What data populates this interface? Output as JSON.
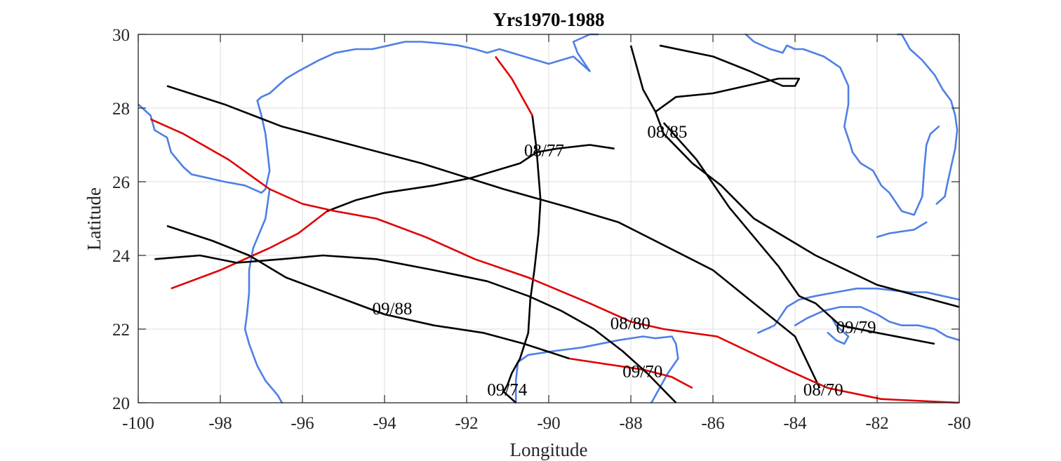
{
  "chart_data": {
    "type": "line",
    "title": "Yrs1970-1988",
    "xlabel": "Longitude",
    "ylabel": "Latitude",
    "xlim": [
      -100,
      -80
    ],
    "ylim": [
      20,
      30
    ],
    "xticks": [
      -100,
      -98,
      -96,
      -94,
      -92,
      -90,
      -88,
      -86,
      -84,
      -82,
      -80
    ],
    "xtick_labels": [
      "-100",
      "-98",
      "-96",
      "-94",
      "-92",
      "-90",
      "-88",
      "-86",
      "-84",
      "-82",
      "-80"
    ],
    "yticks": [
      20,
      22,
      24,
      26,
      28,
      30
    ],
    "ytick_labels": [
      "20",
      "22",
      "24",
      "26",
      "28",
      "30"
    ],
    "grid": true,
    "colors": {
      "track": "#000000",
      "highlight": "#e00000",
      "coast": "#4f7fe6",
      "grid": "#dcdcdc",
      "axis": "#262626"
    },
    "series": [
      {
        "name": "track-long-north",
        "color": "#000000",
        "x": [
          -99.3,
          -97.9,
          -96.5,
          -94.8,
          -93.1,
          -91.1,
          -89.5,
          -88.3,
          -86.0,
          -85.0,
          -84.0,
          -83.4
        ],
        "y": [
          28.6,
          28.1,
          27.5,
          27.0,
          26.5,
          25.8,
          25.3,
          24.9,
          23.6,
          22.7,
          21.8,
          20.4
        ]
      },
      {
        "name": "track-08/85",
        "color": "#000000",
        "x": [
          -88.0,
          -87.7,
          -87.4,
          -87.2,
          -86.5,
          -85.8,
          -85.0,
          -83.5,
          -82.0,
          -80.0
        ],
        "y": [
          29.7,
          28.5,
          27.9,
          27.3,
          26.5,
          25.9,
          25.0,
          24.0,
          23.2,
          22.6
        ]
      },
      {
        "name": "track-08/85-loop",
        "color": "#000000",
        "x": [
          -87.4,
          -86.9,
          -86.0,
          -85.2,
          -84.4,
          -83.9,
          -84.0,
          -84.3,
          -84.7,
          -85.1,
          -86.0,
          -87.3
        ],
        "y": [
          27.9,
          28.3,
          28.4,
          28.6,
          28.8,
          28.8,
          28.6,
          28.6,
          28.8,
          29.0,
          29.4,
          29.7
        ]
      },
      {
        "name": "track-09/79",
        "color": "#000000",
        "x": [
          -87.2,
          -86.4,
          -85.6,
          -84.4,
          -83.9,
          -83.5,
          -82.9,
          -82.0,
          -80.6
        ],
        "y": [
          27.6,
          26.6,
          25.3,
          23.7,
          22.9,
          22.7,
          22.1,
          21.9,
          21.6
        ]
      },
      {
        "name": "track-08/77",
        "color": "#000000",
        "x": [
          -95.4,
          -94.7,
          -94.0,
          -92.8,
          -91.9,
          -90.7,
          -90.3,
          -89.8,
          -89.0,
          -88.4
        ],
        "y": [
          25.2,
          25.5,
          25.7,
          25.9,
          26.1,
          26.5,
          26.8,
          26.9,
          27.0,
          26.9
        ]
      },
      {
        "name": "track-08/77-red",
        "color": "#e00000",
        "x": [
          -99.2,
          -98.0,
          -96.8,
          -96.1,
          -95.4
        ],
        "y": [
          23.1,
          23.6,
          24.2,
          24.6,
          25.2
        ]
      },
      {
        "name": "track-09/74",
        "color": "#000000",
        "x": [
          -90.4,
          -90.3,
          -90.2,
          -90.25,
          -90.35,
          -90.45,
          -90.5,
          -90.7,
          -90.9,
          -91.0,
          -91.1,
          -90.8
        ],
        "y": [
          27.8,
          26.9,
          25.5,
          24.6,
          23.6,
          22.8,
          21.9,
          21.2,
          20.8,
          20.5,
          20.3,
          20.0
        ]
      },
      {
        "name": "track-09/74-red",
        "color": "#e00000",
        "x": [
          -91.3,
          -90.9,
          -90.4
        ],
        "y": [
          29.4,
          28.8,
          27.8
        ]
      },
      {
        "name": "track-08/80-red",
        "color": "#e00000",
        "x": [
          -99.7,
          -98.9,
          -97.8,
          -96.8,
          -96.0,
          -95.2,
          -94.2,
          -93.0,
          -91.8,
          -90.5,
          -89.0,
          -88.0,
          -87.2,
          -85.9,
          -84.2,
          -83.2,
          -81.9,
          -80.0
        ],
        "y": [
          27.7,
          27.3,
          26.6,
          25.8,
          25.4,
          25.2,
          25.0,
          24.5,
          23.9,
          23.4,
          22.7,
          22.2,
          22.0,
          21.8,
          20.9,
          20.4,
          20.1,
          20.0
        ]
      },
      {
        "name": "track-09/88",
        "color": "#000000",
        "x": [
          -99.3,
          -98.2,
          -97.3,
          -96.4,
          -95.2,
          -94.0,
          -92.8,
          -91.6,
          -90.6,
          -89.5
        ],
        "y": [
          24.8,
          24.4,
          24.0,
          23.4,
          22.9,
          22.4,
          22.1,
          21.9,
          21.6,
          21.2
        ]
      },
      {
        "name": "track-09/88-red",
        "color": "#e00000",
        "x": [
          -89.5,
          -87.7,
          -87.0,
          -86.5
        ],
        "y": [
          21.2,
          20.9,
          20.7,
          20.4
        ]
      },
      {
        "name": "track-09/70",
        "color": "#000000",
        "x": [
          -99.6,
          -98.5,
          -97.6,
          -96.5,
          -95.5,
          -94.2,
          -92.8,
          -91.5,
          -90.5,
          -89.7,
          -88.9,
          -88.2,
          -87.6,
          -86.9
        ],
        "y": [
          23.9,
          24.0,
          23.8,
          23.9,
          24.0,
          23.9,
          23.6,
          23.3,
          22.9,
          22.5,
          22.0,
          21.4,
          20.8,
          20.0
        ]
      }
    ],
    "coastlines": [
      {
        "name": "texas-louisiana-coast",
        "x": [
          -100.0,
          -99.7,
          -99.6,
          -99.3,
          -99.2,
          -98.9,
          -98.7,
          -98.3,
          -97.9,
          -97.4,
          -97.0,
          -96.9,
          -96.8,
          -96.85,
          -96.9,
          -97.0,
          -97.05,
          -97.1,
          -97.0,
          -96.8,
          -96.6,
          -96.4,
          -96.1,
          -95.6,
          -95.2,
          -94.7,
          -94.3,
          -93.9,
          -93.5,
          -93.1,
          -92.6,
          -92.2,
          -91.8,
          -91.5,
          -91.2,
          -90.9,
          -90.6,
          -90.3,
          -90.0,
          -89.7,
          -89.4,
          -89.2,
          -89.0,
          -89.3,
          -89.4,
          -89.0,
          -88.8
        ],
        "y": [
          28.1,
          27.8,
          27.4,
          27.2,
          26.8,
          26.4,
          26.2,
          26.1,
          26.0,
          25.9,
          25.7,
          25.8,
          26.3,
          26.8,
          27.3,
          27.8,
          28.0,
          28.2,
          28.3,
          28.4,
          28.6,
          28.8,
          29.0,
          29.3,
          29.5,
          29.6,
          29.6,
          29.7,
          29.8,
          29.8,
          29.75,
          29.7,
          29.6,
          29.5,
          29.6,
          29.5,
          29.4,
          29.3,
          29.2,
          29.3,
          29.4,
          29.2,
          29.0,
          29.5,
          29.8,
          30.0,
          30.0
        ]
      },
      {
        "name": "mexico-coast",
        "x": [
          -96.8,
          -96.9,
          -97.05,
          -97.2,
          -97.3,
          -97.3,
          -97.35,
          -97.4,
          -97.3,
          -97.2,
          -97.1,
          -96.9,
          -96.6,
          -96.5
        ],
        "y": [
          25.8,
          25.0,
          24.6,
          24.2,
          23.6,
          23.0,
          22.4,
          22.0,
          21.6,
          21.3,
          21.0,
          20.6,
          20.2,
          20.0
        ]
      },
      {
        "name": "yucatan-coast",
        "x": [
          -90.8,
          -90.8,
          -90.75,
          -90.5,
          -89.9,
          -89.2,
          -88.3,
          -87.7,
          -87.4,
          -87.0,
          -86.9,
          -86.85,
          -87.1,
          -87.3,
          -87.5
        ],
        "y": [
          20.0,
          20.6,
          21.1,
          21.3,
          21.4,
          21.5,
          21.7,
          21.8,
          21.75,
          21.8,
          21.6,
          21.2,
          20.8,
          20.4,
          20.0
        ]
      },
      {
        "name": "florida-panhandle-coast",
        "x": [
          -85.2,
          -85.0,
          -84.6,
          -84.3,
          -84.2,
          -84.0,
          -83.8,
          -83.3,
          -82.9,
          -82.7,
          -82.7,
          -82.8,
          -82.65,
          -82.6,
          -82.4,
          -82.1,
          -81.9,
          -81.7,
          -81.4,
          -81.1,
          -80.9,
          -80.85,
          -80.8,
          -80.7,
          -80.5
        ],
        "y": [
          30.0,
          29.8,
          29.6,
          29.5,
          29.7,
          29.6,
          29.6,
          29.4,
          29.1,
          28.6,
          28.1,
          27.5,
          27.0,
          26.8,
          26.5,
          26.3,
          25.9,
          25.7,
          25.2,
          25.1,
          25.6,
          26.4,
          27.0,
          27.3,
          27.5
        ]
      },
      {
        "name": "florida-east-coast",
        "x": [
          -80.55,
          -80.35,
          -80.3,
          -80.2,
          -80.1,
          -80.05,
          -80.1,
          -80.2,
          -80.4,
          -80.6,
          -80.9,
          -81.2,
          -81.3,
          -81.4,
          -81.5
        ],
        "y": [
          25.4,
          25.6,
          25.9,
          26.4,
          26.9,
          27.4,
          27.8,
          28.2,
          28.5,
          28.9,
          29.3,
          29.6,
          29.8,
          30.0,
          30.0
        ]
      },
      {
        "name": "florida-keys",
        "x": [
          -82.0,
          -81.7,
          -81.4,
          -81.1,
          -80.8
        ],
        "y": [
          24.5,
          24.6,
          24.65,
          24.7,
          24.9
        ]
      },
      {
        "name": "cuba-coast",
        "x": [
          -84.9,
          -84.5,
          -84.2,
          -83.9,
          -83.5,
          -83.0,
          -82.5,
          -82.0,
          -81.6,
          -81.2,
          -80.8,
          -80.4,
          -80.0
        ],
        "y": [
          21.9,
          22.1,
          22.6,
          22.8,
          22.9,
          23.0,
          23.1,
          23.1,
          23.05,
          23.0,
          23.0,
          22.9,
          22.8
        ]
      },
      {
        "name": "cuba-south-coast",
        "x": [
          -84.0,
          -83.7,
          -83.3,
          -82.9,
          -82.4,
          -82.0,
          -81.7,
          -81.4,
          -81.0,
          -80.6,
          -80.3,
          -80.0
        ],
        "y": [
          22.1,
          22.3,
          22.5,
          22.6,
          22.6,
          22.4,
          22.2,
          22.1,
          22.1,
          22.0,
          21.8,
          21.7
        ]
      },
      {
        "name": "isle-of-youth",
        "x": [
          -83.2,
          -83.0,
          -82.8,
          -82.7,
          -83.0,
          -83.1
        ],
        "y": [
          21.9,
          21.7,
          21.6,
          21.8,
          22.1,
          22.3
        ]
      }
    ],
    "annotations": [
      {
        "text": "08/77",
        "x": -90.6,
        "y": 26.7
      },
      {
        "text": "08/85",
        "x": -87.6,
        "y": 27.2
      },
      {
        "text": "09/88",
        "x": -94.3,
        "y": 22.4
      },
      {
        "text": "08/80",
        "x": -88.5,
        "y": 22.0
      },
      {
        "text": "09/70",
        "x": -88.2,
        "y": 20.7
      },
      {
        "text": "09/79",
        "x": -83.0,
        "y": 21.9
      },
      {
        "text": "09/74",
        "x": -91.5,
        "y": 20.2
      },
      {
        "text": "08/70",
        "x": -83.8,
        "y": 20.2
      }
    ]
  }
}
